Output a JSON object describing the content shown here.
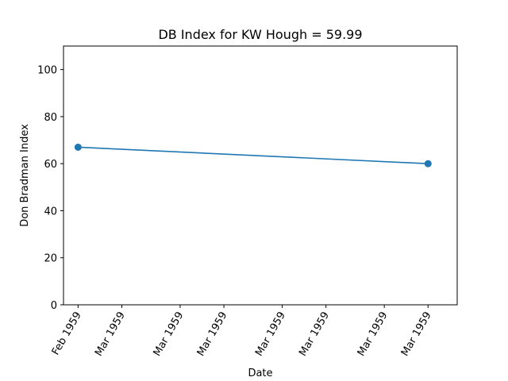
{
  "chart_data": {
    "type": "line",
    "title": "DB Index for KW Hough = 59.99",
    "xlabel": "Date",
    "ylabel": "Don Bradman Index",
    "x": [
      "1959-02-28",
      "1959-03-24"
    ],
    "series": [
      {
        "values": [
          67.0,
          59.99
        ],
        "color": "#1f77b4"
      }
    ],
    "xlim": [
      "1959-02-27",
      "1959-03-26"
    ],
    "ylim": [
      0,
      110
    ],
    "x_ticks": [
      {
        "date": "1959-02-28",
        "label": "Feb 1959"
      },
      {
        "date": "1959-03-03",
        "label": "Mar 1959"
      },
      {
        "date": "1959-03-07",
        "label": "Mar 1959"
      },
      {
        "date": "1959-03-10",
        "label": "Mar 1959"
      },
      {
        "date": "1959-03-14",
        "label": "Mar 1959"
      },
      {
        "date": "1959-03-17",
        "label": "Mar 1959"
      },
      {
        "date": "1959-03-21",
        "label": "Mar 1959"
      },
      {
        "date": "1959-03-24",
        "label": "Mar 1959"
      }
    ],
    "y_ticks": [
      0,
      20,
      40,
      60,
      80,
      100
    ],
    "grid": false,
    "legend": "none"
  }
}
